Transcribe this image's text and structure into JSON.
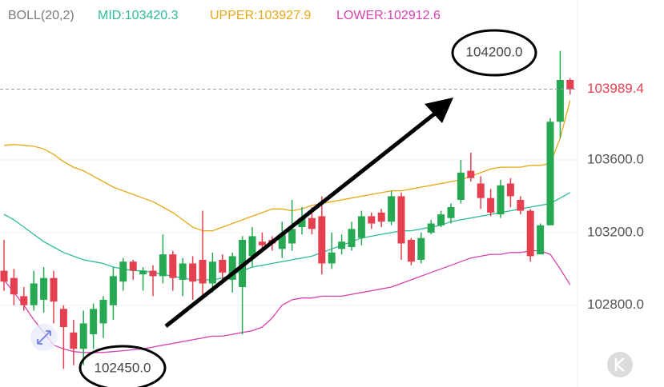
{
  "chart_data": {
    "type": "candlestick",
    "indicator": "BOLL(20,2)",
    "up_color": "#27a853",
    "down_color": "#e5404f",
    "ohlc": [
      [
        102990,
        103160,
        102880,
        102930
      ],
      [
        102950,
        103000,
        102800,
        102860
      ],
      [
        102850,
        102900,
        102770,
        102800
      ],
      [
        102800,
        102990,
        102770,
        102920
      ],
      [
        102830,
        103010,
        102760,
        102950
      ],
      [
        102950,
        102990,
        102700,
        102820
      ],
      [
        102780,
        102800,
        102450,
        102680
      ],
      [
        102650,
        102720,
        102470,
        102560
      ],
      [
        102560,
        102770,
        102470,
        102700
      ],
      [
        102640,
        102810,
        102560,
        102780
      ],
      [
        102700,
        102850,
        102620,
        102830
      ],
      [
        102800,
        103010,
        102720,
        102960
      ],
      [
        102930,
        103060,
        102880,
        103040
      ],
      [
        103040,
        103050,
        102940,
        102990
      ],
      [
        102970,
        103010,
        102880,
        102990
      ],
      [
        102990,
        103020,
        102850,
        102960
      ],
      [
        102960,
        103190,
        102920,
        103080
      ],
      [
        103080,
        103100,
        102880,
        102950
      ],
      [
        102940,
        103060,
        102850,
        103030
      ],
      [
        103030,
        103070,
        102830,
        102930
      ],
      [
        103050,
        103320,
        102850,
        102920
      ],
      [
        102920,
        103090,
        102870,
        103040
      ],
      [
        103050,
        103080,
        102940,
        102980
      ],
      [
        102940,
        103090,
        102870,
        103070
      ],
      [
        102900,
        103180,
        102640,
        103160
      ],
      [
        103070,
        103230,
        103010,
        103180
      ],
      [
        103150,
        103200,
        103100,
        103130
      ],
      [
        103160,
        103180,
        103100,
        103140
      ],
      [
        103110,
        103260,
        103060,
        103190
      ],
      [
        103140,
        103380,
        103100,
        103220
      ],
      [
        103230,
        103340,
        103190,
        103280
      ],
      [
        103280,
        103340,
        103190,
        103220
      ],
      [
        103290,
        103400,
        102970,
        103030
      ],
      [
        103030,
        103200,
        103000,
        103090
      ],
      [
        103110,
        103190,
        103080,
        103150
      ],
      [
        103120,
        103260,
        103100,
        103220
      ],
      [
        103170,
        103320,
        103130,
        103290
      ],
      [
        103290,
        103310,
        103220,
        103250
      ],
      [
        103310,
        103330,
        103230,
        103260
      ],
      [
        103260,
        103430,
        103240,
        103400
      ],
      [
        103400,
        103420,
        103050,
        103140
      ],
      [
        103160,
        103170,
        103020,
        103040
      ],
      [
        103050,
        103200,
        103030,
        103170
      ],
      [
        103200,
        103270,
        103190,
        103250
      ],
      [
        103240,
        103320,
        103230,
        103300
      ],
      [
        103280,
        103360,
        103250,
        103340
      ],
      [
        103380,
        103600,
        103360,
        103530
      ],
      [
        103540,
        103640,
        103480,
        103500
      ],
      [
        103470,
        103510,
        103330,
        103390
      ],
      [
        103390,
        103440,
        103290,
        103310
      ],
      [
        103300,
        103490,
        103280,
        103460
      ],
      [
        103470,
        103500,
        103340,
        103400
      ],
      [
        103380,
        103400,
        103300,
        103320
      ],
      [
        103320,
        103330,
        103040,
        103070
      ],
      [
        103080,
        103250,
        103080,
        103240
      ],
      [
        103240,
        103830,
        103240,
        103810
      ],
      [
        103810,
        104200,
        103720,
        104040
      ],
      [
        104040,
        104050,
        103960,
        103989.4
      ]
    ],
    "series": [
      {
        "name": "MID:103420.3",
        "color": "#2dbb9b",
        "values": [
          103300,
          103270,
          103230,
          103190,
          103150,
          103120,
          103090,
          103070,
          103050,
          103040,
          103030,
          103010,
          103000,
          102990,
          102990,
          102980,
          102970,
          102960,
          102950,
          102940,
          102940,
          102940,
          102950,
          102970,
          102990,
          103010,
          103020,
          103030,
          103040,
          103050,
          103060,
          103070,
          103090,
          103110,
          103130,
          103150,
          103170,
          103180,
          103190,
          103200,
          103210,
          103210,
          103220,
          103230,
          103240,
          103260,
          103270,
          103280,
          103290,
          103300,
          103310,
          103320,
          103330,
          103340,
          103350,
          103360,
          103390,
          103420.3
        ]
      },
      {
        "name": "UPPER:103927.9",
        "color": "#e6a817",
        "values": [
          103680,
          103685,
          103680,
          103675,
          103660,
          103630,
          103590,
          103560,
          103540,
          103510,
          103480,
          103450,
          103430,
          103410,
          103390,
          103370,
          103340,
          103310,
          103270,
          103230,
          103210,
          103210,
          103230,
          103250,
          103270,
          103290,
          103310,
          103330,
          103330,
          103320,
          103330,
          103350,
          103360,
          103370,
          103380,
          103390,
          103400,
          103410,
          103420,
          103430,
          103430,
          103440,
          103450,
          103460,
          103470,
          103480,
          103490,
          103510,
          103530,
          103550,
          103560,
          103560,
          103560,
          103570,
          103570,
          103580,
          103720,
          103927.9
        ]
      },
      {
        "name": "LOWER:102912.6",
        "color": "#d642b0",
        "values": [
          102940,
          102870,
          102800,
          102720,
          102650,
          102580,
          102560,
          102545,
          102540,
          102540,
          102540,
          102545,
          102550,
          102555,
          102560,
          102570,
          102580,
          102590,
          102600,
          102610,
          102620,
          102630,
          102630,
          102640,
          102650,
          102660,
          102680,
          102730,
          102800,
          102830,
          102840,
          102840,
          102850,
          102850,
          102850,
          102860,
          102870,
          102880,
          102890,
          102900,
          102920,
          102940,
          102960,
          102980,
          103000,
          103020,
          103040,
          103060,
          103070,
          103080,
          103080,
          103090,
          103090,
          103100,
          103100,
          103080,
          103000,
          102912.6
        ]
      }
    ],
    "last_price": 103989.4,
    "high_annotation": {
      "value": 104200,
      "label": "104200.0"
    },
    "low_annotation": {
      "value": 102450,
      "label": "102450.0"
    },
    "ylim": [
      102350,
      104480
    ],
    "yticks": [
      {
        "value": 103600,
        "label": "103600.0"
      },
      {
        "value": 103200,
        "label": "103200.0"
      },
      {
        "value": 102800,
        "label": "102800.0"
      }
    ],
    "grid": true
  }
}
